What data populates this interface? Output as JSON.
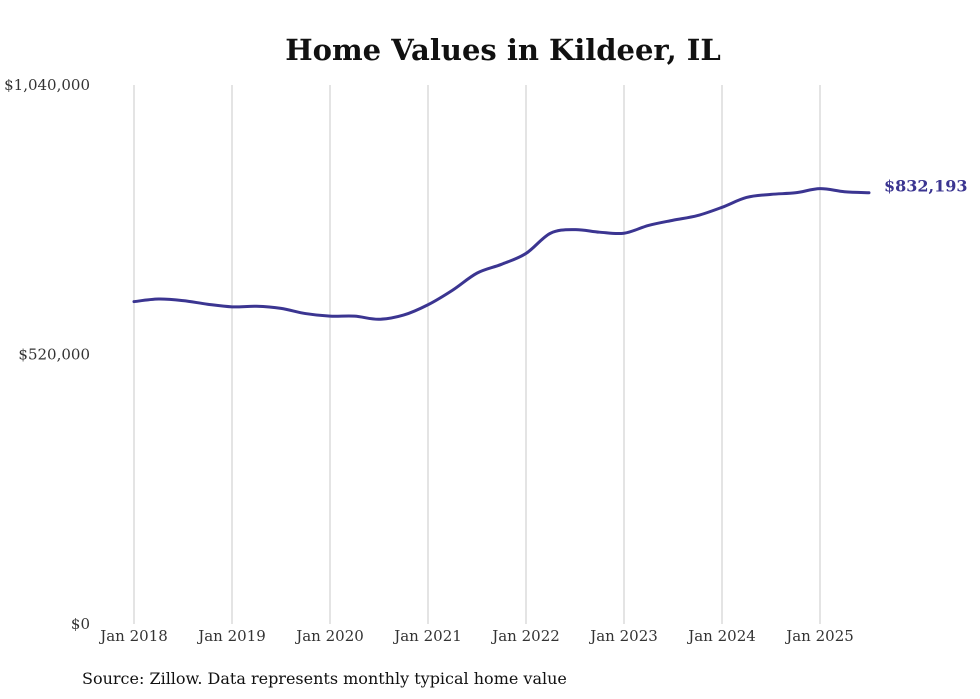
{
  "chart_data": {
    "type": "line",
    "title": "Home Values in Kildeer, IL",
    "xlabel": "",
    "ylabel": "",
    "ylim": [
      0,
      1040000
    ],
    "y_ticks": [
      "$0",
      "$520,000",
      "$1,040,000"
    ],
    "y_tick_values": [
      0,
      520000,
      1040000
    ],
    "x_ticks": [
      "Jan 2018",
      "Jan 2019",
      "Jan 2020",
      "Jan 2021",
      "Jan 2022",
      "Jan 2023",
      "Jan 2024",
      "Jan 2025"
    ],
    "x_tick_values": [
      "2018-01",
      "2019-01",
      "2020-01",
      "2021-01",
      "2022-01",
      "2023-01",
      "2024-01",
      "2025-01"
    ],
    "grid": "vertical",
    "line_color": "#3b3591",
    "end_label": "$832,193",
    "series": [
      {
        "x": [
          "2018-01",
          "2018-04",
          "2018-07",
          "2018-10",
          "2019-01",
          "2019-04",
          "2019-07",
          "2019-10",
          "2020-01",
          "2020-04",
          "2020-07",
          "2020-10",
          "2021-01",
          "2021-04",
          "2021-07",
          "2021-10",
          "2022-01",
          "2022-04",
          "2022-07",
          "2022-10",
          "2023-01",
          "2023-04",
          "2023-07",
          "2023-10",
          "2024-01",
          "2024-04",
          "2024-07",
          "2024-10",
          "2025-01",
          "2025-04",
          "2025-07"
        ],
        "values": [
          622000,
          627000,
          624000,
          617000,
          612000,
          613000,
          609000,
          599000,
          594000,
          594000,
          588000,
          596000,
          616000,
          644000,
          677000,
          694000,
          715000,
          754000,
          761000,
          756000,
          754000,
          769000,
          779000,
          788000,
          804000,
          823000,
          829000,
          832000,
          840000,
          834000,
          832193
        ]
      }
    ]
  },
  "source": "Source: Zillow. Data represents monthly typical home value"
}
